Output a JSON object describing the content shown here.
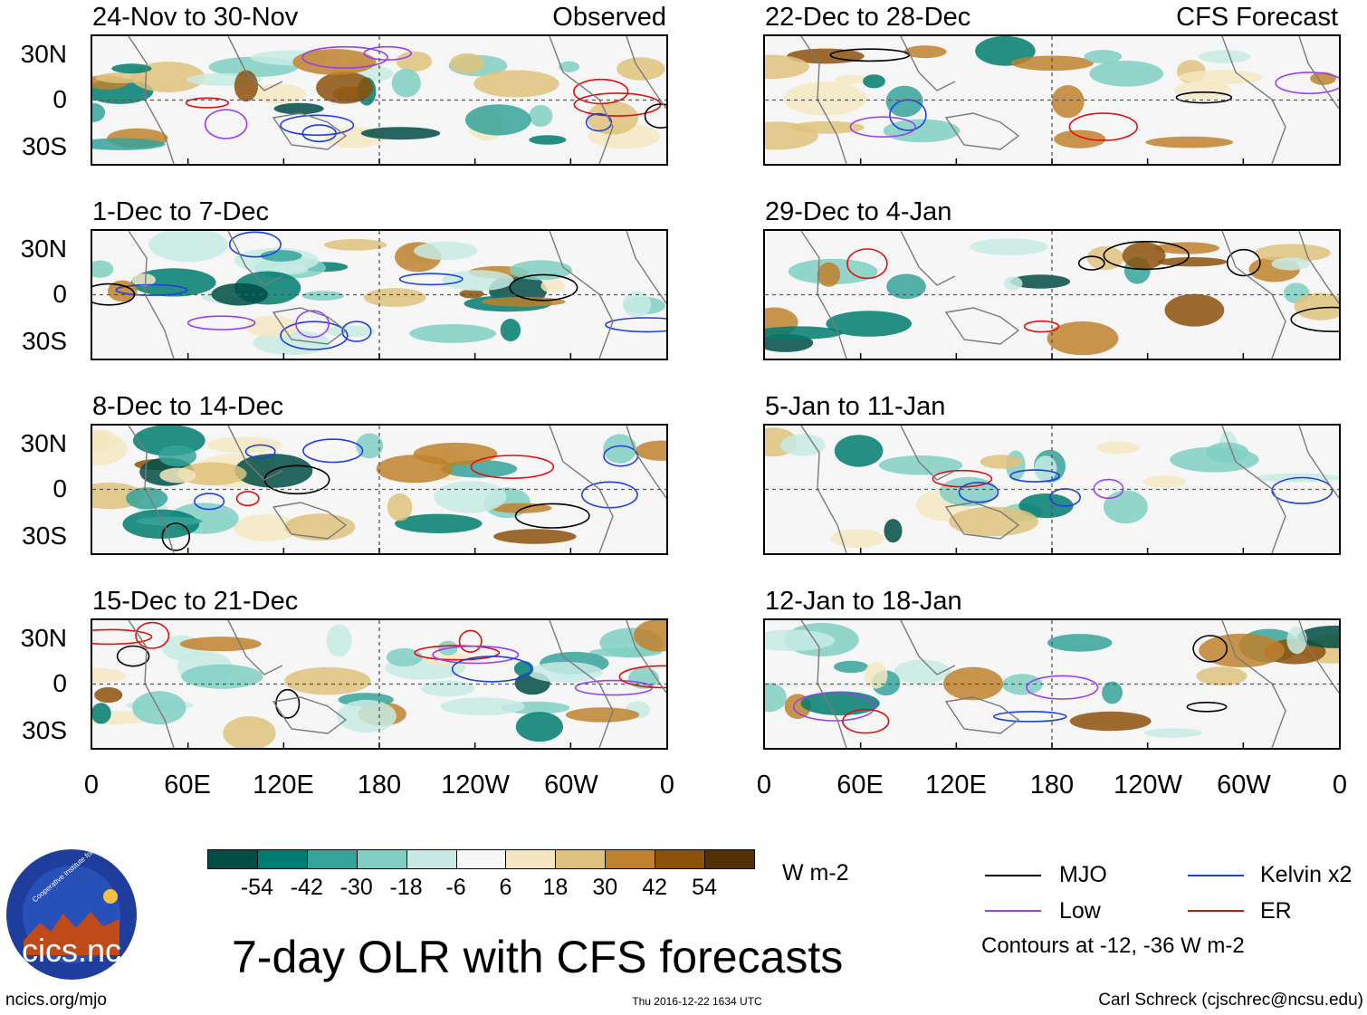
{
  "panels_left": [
    {
      "title": "24-Nov to 30-Nov"
    },
    {
      "title": "1-Dec to 7-Dec"
    },
    {
      "title": "8-Dec to 14-Dec"
    },
    {
      "title": "15-Dec to 21-Dec"
    }
  ],
  "panels_right": [
    {
      "title": "22-Dec to 28-Dec"
    },
    {
      "title": "29-Dec to 4-Jan"
    },
    {
      "title": "5-Jan to 11-Jan"
    },
    {
      "title": "12-Jan to 18-Jan"
    }
  ],
  "header": {
    "observed": "Observed",
    "forecast": "CFS Forecast"
  },
  "lat_ticks": [
    "30N",
    "0",
    "30S"
  ],
  "lon_ticks": [
    "0",
    "60E",
    "120E",
    "180",
    "120W",
    "60W",
    "0"
  ],
  "colorbar": {
    "colors": [
      "#004e45",
      "#007c70",
      "#35a39a",
      "#80cfc3",
      "#c7ebe4",
      "#f6f6f6",
      "#f5e7c1",
      "#dfc27d",
      "#bf812d",
      "#8c510a",
      "#543005"
    ],
    "labels": [
      "-54",
      "-42",
      "-30",
      "-18",
      "-6",
      "6",
      "18",
      "30",
      "42",
      "54"
    ],
    "units": "W m-2"
  },
  "legend": {
    "items": [
      {
        "label": "MJO",
        "color": "#000000"
      },
      {
        "label": "Kelvin x2",
        "color": "#1f3fe0"
      },
      {
        "label": "Low",
        "color": "#9a3ff0"
      },
      {
        "label": "ER",
        "color": "#e01010"
      }
    ],
    "contours_note": "Contours at -12, -36 W m-2"
  },
  "logo": {
    "text": "cics.nc",
    "ring_text": "Cooperative Institute for Climate and Satellites"
  },
  "main_title": "7-day OLR with CFS forecasts",
  "footer": {
    "url": "ncics.org/mjo",
    "timestamp": "Thu 2016-12-22 1634 UTC",
    "author": "Carl Schreck (cjschrec@ncsu.edu)"
  }
}
